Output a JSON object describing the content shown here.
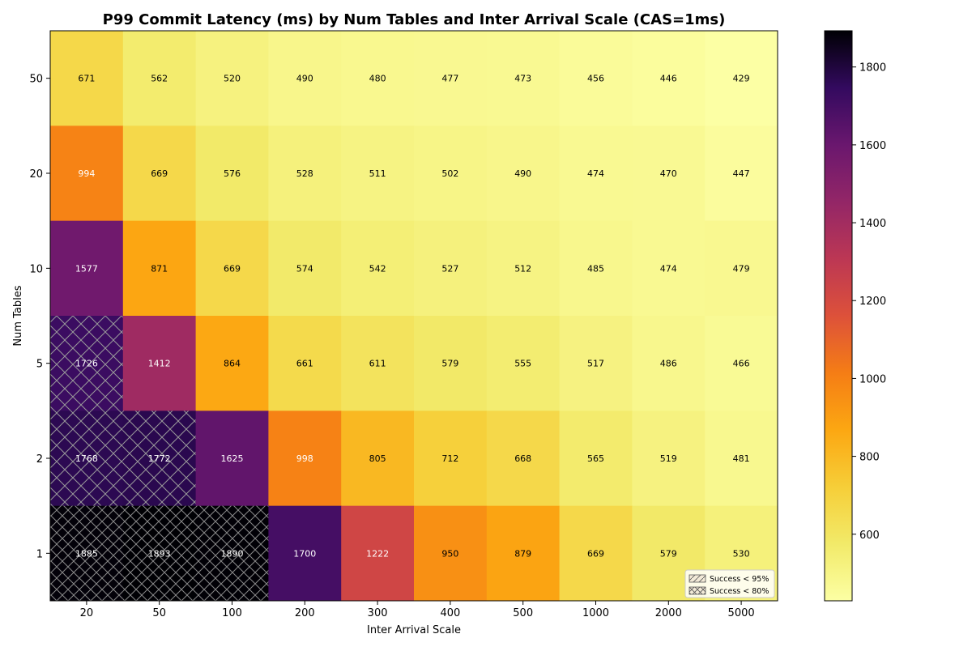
{
  "chart_data": {
    "type": "heatmap",
    "title": "P99 Commit Latency (ms) by Num Tables and Inter Arrival Scale (CAS=1ms)",
    "xlabel": "Inter Arrival Scale",
    "ylabel": "Num Tables",
    "x_categories": [
      "20",
      "50",
      "100",
      "200",
      "300",
      "400",
      "500",
      "1000",
      "2000",
      "5000"
    ],
    "y_categories": [
      "50",
      "20",
      "10",
      "5",
      "2",
      "1"
    ],
    "values": [
      [
        671,
        562,
        520,
        490,
        480,
        477,
        473,
        456,
        446,
        429
      ],
      [
        994,
        669,
        576,
        528,
        511,
        502,
        490,
        474,
        470,
        447
      ],
      [
        1577,
        871,
        669,
        574,
        542,
        527,
        512,
        485,
        474,
        479
      ],
      [
        1726,
        1412,
        864,
        661,
        611,
        579,
        555,
        517,
        486,
        466
      ],
      [
        1768,
        1772,
        1625,
        998,
        805,
        712,
        668,
        565,
        519,
        481
      ],
      [
        1885,
        1893,
        1890,
        1700,
        1222,
        950,
        879,
        669,
        579,
        530
      ]
    ],
    "hatch": [
      [
        "",
        "",
        "",
        "",
        "",
        "",
        "",
        "",
        "",
        ""
      ],
      [
        "",
        "",
        "",
        "",
        "",
        "",
        "",
        "",
        "",
        ""
      ],
      [
        "",
        "",
        "",
        "",
        "",
        "",
        "",
        "",
        "",
        ""
      ],
      [
        "x",
        "",
        "",
        "",
        "",
        "",
        "",
        "",
        "",
        ""
      ],
      [
        "x",
        "x",
        "",
        "",
        "",
        "",
        "",
        "",
        "",
        ""
      ],
      [
        "xx",
        "xx",
        "xx",
        "",
        "",
        "",
        "",
        "",
        "",
        ""
      ]
    ],
    "colormap": "inferno_r",
    "color_range": [
      429,
      1893
    ],
    "colorbar_ticks": [
      600,
      800,
      1000,
      1200,
      1400,
      1600,
      1800
    ],
    "legend": {
      "placement": "lower-right",
      "entries": [
        {
          "label": "Success < 95%",
          "hatch": "x"
        },
        {
          "label": "Success < 80%",
          "hatch": "xx"
        }
      ]
    }
  }
}
